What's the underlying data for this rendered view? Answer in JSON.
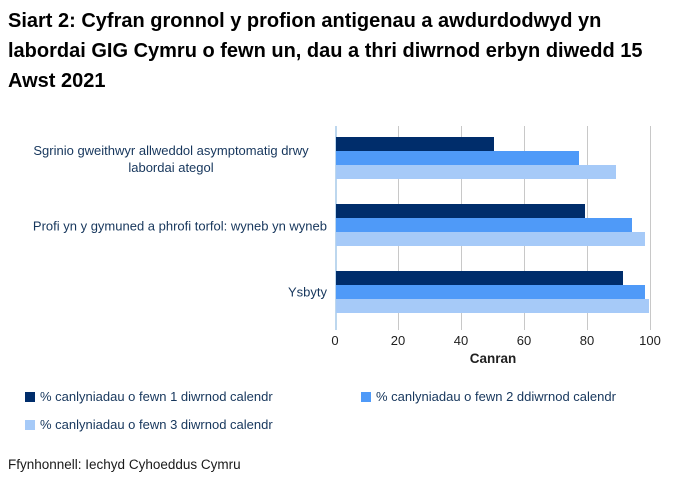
{
  "title": "Siart 2: Cyfran gronnol y profion antigenau a awdurdodwyd yn labordai GIG Cymru o fewn un, dau a thri diwrnod erbyn diwedd 15 Awst 2021",
  "source": "Ffynhonnell: Iechyd Cyhoeddus Cymru",
  "colors": {
    "series1": "#002D6B",
    "series2": "#4F9AF8",
    "series3": "#A6CAF8",
    "axis_line": "#BDD7EE",
    "gridline": "#C8C8C8",
    "label_text": "#16365C"
  },
  "chart_data": {
    "type": "bar",
    "orientation": "horizontal",
    "title": "Siart 2: Cyfran gronnol y profion antigenau a awdurdodwyd yn labordai GIG Cymru o fewn un, dau a thri diwrnod erbyn diwedd 15 Awst 2021",
    "categories": [
      "Sgrinio gweithwyr allweddol asymptomatig drwy labordai ategol",
      "Profi yn y gymuned a phrofi torfol: wyneb yn wyneb",
      "Ysbyty"
    ],
    "series": [
      {
        "name": "% canlyniadau o fewn 1 diwrnod calendr",
        "color": "#002D6B",
        "values": [
          50,
          79,
          91
        ]
      },
      {
        "name": "% canlyniadau o fewn 2 ddiwrnod calendr",
        "color": "#4F9AF8",
        "values": [
          77,
          94,
          98
        ]
      },
      {
        "name": "% canlyniadau o fewn 3 diwrnod calendr",
        "color": "#A6CAF8",
        "values": [
          89,
          98,
          99.5
        ]
      }
    ],
    "xlabel": "Canran",
    "xlim": [
      0,
      100
    ],
    "xticks": [
      0,
      20,
      40,
      60,
      80,
      100
    ],
    "grid": true,
    "legend_position": "bottom"
  }
}
